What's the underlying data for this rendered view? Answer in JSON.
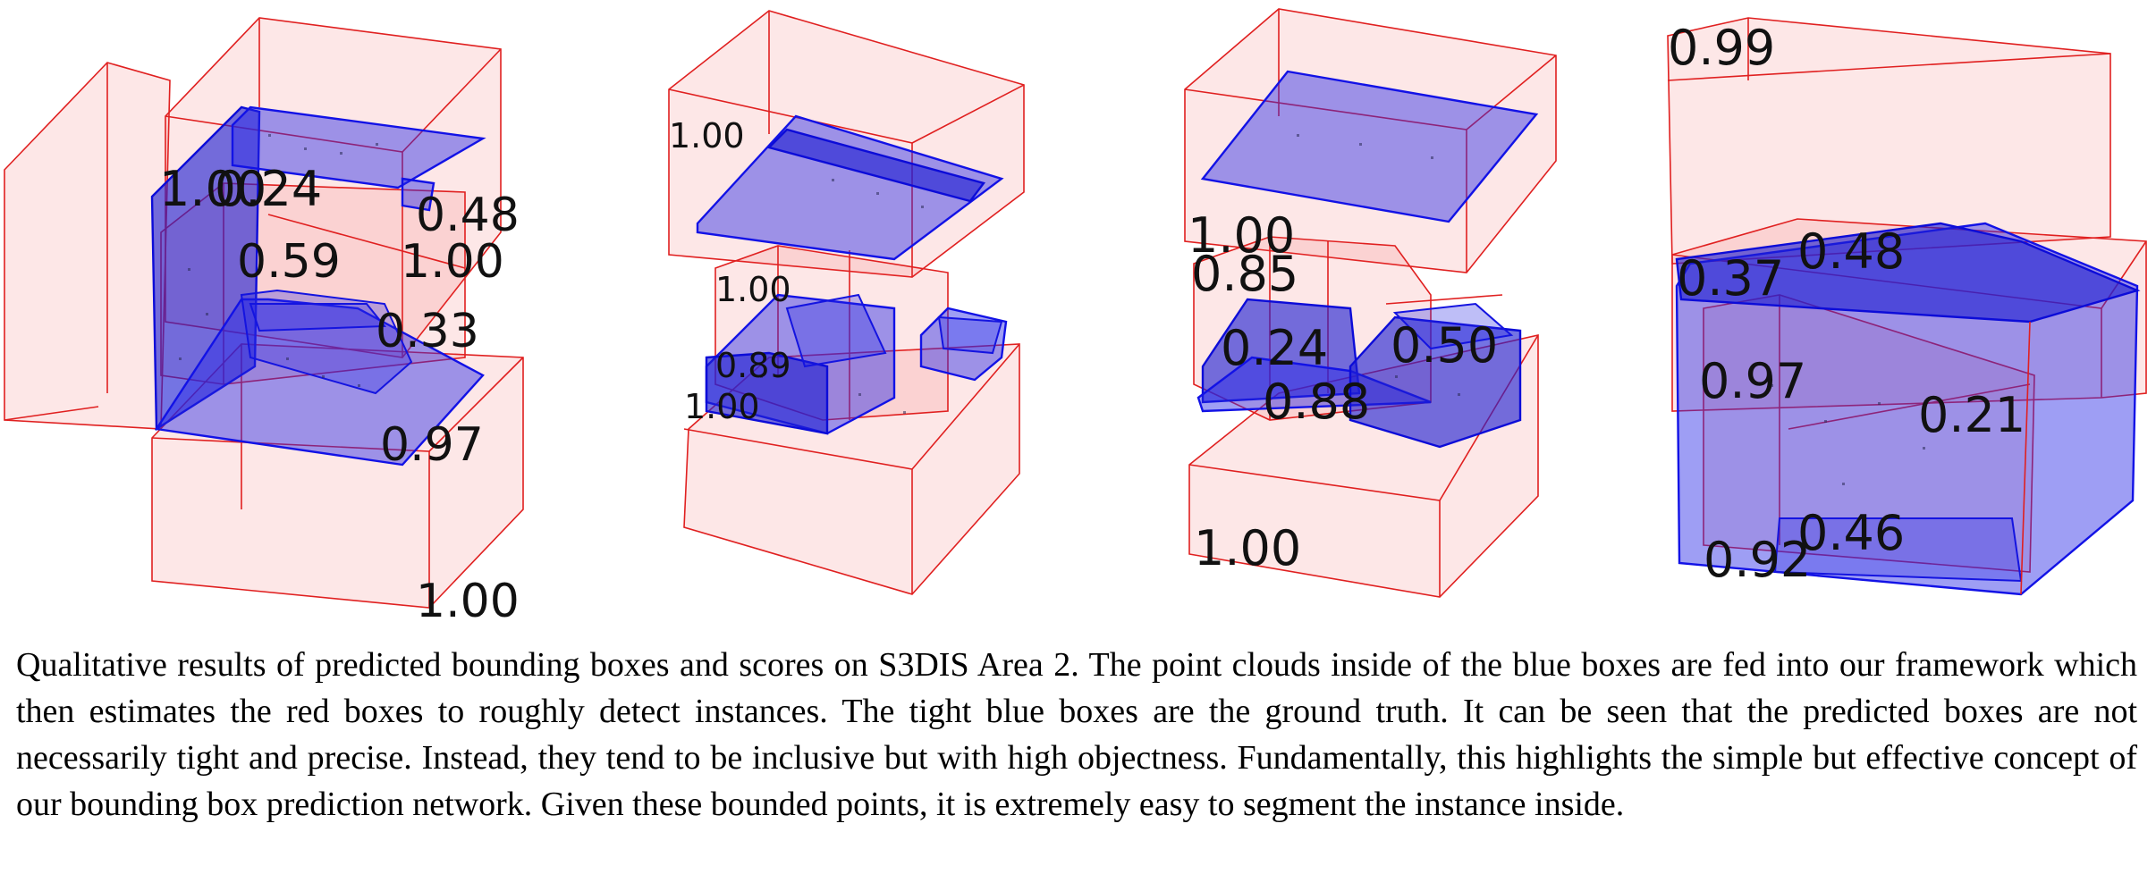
{
  "figure": {
    "panels": [
      {
        "scores": [
          "1.00",
          "0.24",
          "0.48",
          "0.59",
          "1.00",
          "0.33",
          "0.97",
          "1.00"
        ]
      },
      {
        "scores": [
          "1.00",
          "1.00",
          "0.89",
          "1.00"
        ]
      },
      {
        "scores": [
          "1.00",
          "0.85",
          "0.24",
          "0.50",
          "0.88",
          "1.00"
        ]
      },
      {
        "scores": [
          "0.99",
          "0.37",
          "0.48",
          "0.97",
          "0.21",
          "0.46",
          "0.92"
        ]
      }
    ],
    "colors": {
      "predicted_box": "#e02020",
      "ground_truth_box": "#1212e6"
    }
  },
  "caption": "Qualitative results of predicted bounding boxes and scores  on S3DIS Area 2. The point clouds inside of the blue boxes are fed into our framework which then estimates the red boxes to roughly detect instances. The tight blue boxes are the ground truth. It can be seen that the predicted boxes are not necessarily tight and precise. Instead, they tend to be inclusive but with high objectness. Fundamentally, this highlights the simple but effective concept of our bounding box prediction network. Given these bounded points, it is extremely easy to segment the instance inside."
}
